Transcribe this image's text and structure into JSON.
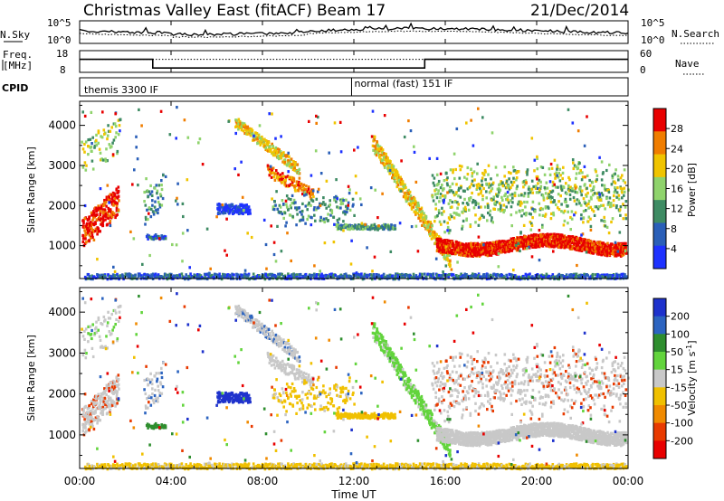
{
  "header": {
    "title": "Christmas Valley East (fitACF)",
    "beam": "Beam 17",
    "date": "21/Dec/2014"
  },
  "chart_data": [
    {
      "type": "line",
      "name": "noise-panel",
      "left_label": "N.Sky",
      "right_label": "N.Search",
      "left_ticks": [
        "10^5",
        "10^0"
      ],
      "right_ticks": [
        "10^5",
        "10^0"
      ]
    },
    {
      "type": "line",
      "name": "frequency-panel",
      "left_label": [
        "Freq.",
        "[MHz]"
      ],
      "right_label": "Nave",
      "left_ticks": [
        18,
        8
      ],
      "right_ticks": [
        60,
        0
      ],
      "freq_mhz": [
        {
          "x": 0,
          "y": 14
        },
        {
          "x": 3.2,
          "y": 14
        },
        {
          "x": 3.2,
          "y": 10
        },
        {
          "x": 15.1,
          "y": 10
        },
        {
          "x": 15.1,
          "y": 14
        },
        {
          "x": 24,
          "y": 14
        }
      ],
      "nave": [
        {
          "x": 0,
          "y": 36
        },
        {
          "x": 24,
          "y": 36
        }
      ]
    },
    {
      "type": "table",
      "name": "cpid-panel",
      "label": "CPID",
      "segments": [
        {
          "x": 0,
          "text": "themis 3300 IF"
        },
        {
          "x": 11.9,
          "text": "normal (fast) 151 IF"
        }
      ]
    },
    {
      "type": "heatmap",
      "name": "power-panel",
      "ylabel": "Slant Range [km]",
      "ylim": [
        180,
        4600
      ],
      "yticks": [
        1000,
        2000,
        3000,
        4000
      ],
      "colorbar": {
        "label": "Power [dB]",
        "ticks": [
          4,
          8,
          12,
          16,
          20,
          24,
          28
        ],
        "range": [
          0,
          32
        ],
        "colors": [
          "#1e32ff",
          "#2a5fb8",
          "#3e8b63",
          "#8fd36c",
          "#f0c400",
          "#f07d00",
          "#e80000"
        ]
      }
    },
    {
      "type": "heatmap",
      "name": "velocity-panel",
      "ylabel": "Slant Range [km]",
      "ylim": [
        180,
        4600
      ],
      "yticks": [
        1000,
        2000,
        3000,
        4000
      ],
      "colorbar": {
        "label": "Velocity [m s^-1]",
        "ticks": [
          "200",
          "100",
          "50",
          "15",
          "-15",
          "-50",
          "-100",
          "-200"
        ],
        "colors": [
          "#1e32cc",
          "#2c64c0",
          "#2e8e2e",
          "#62d43c",
          "#c8c8c8",
          "#f0c000",
          "#f08a00",
          "#e83a00",
          "#e80000"
        ]
      }
    }
  ],
  "x_axis": {
    "label": "Time UT",
    "range": [
      0,
      24
    ],
    "ticks": [
      {
        "v": 0,
        "label": "00:00"
      },
      {
        "v": 4,
        "label": "04:00"
      },
      {
        "v": 8,
        "label": "08:00"
      },
      {
        "v": 12,
        "label": "12:00"
      },
      {
        "v": 16,
        "label": "16:00"
      },
      {
        "v": 20,
        "label": "20:00"
      },
      {
        "v": 24,
        "label": "00:00"
      }
    ]
  }
}
